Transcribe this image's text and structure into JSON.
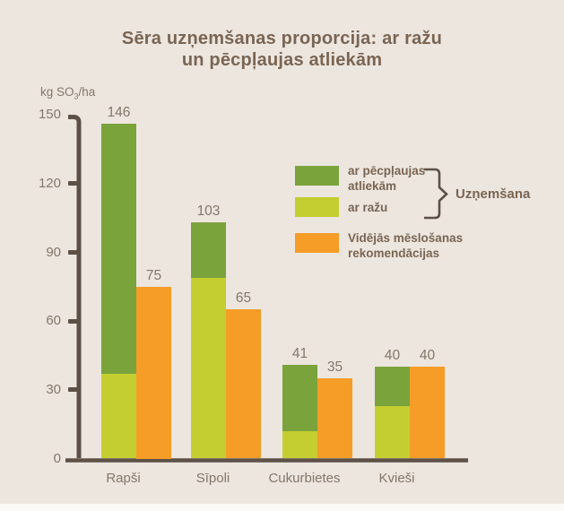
{
  "title": {
    "line1": "Sēra uzņemšanas proporcija: ar ražu",
    "line2": "un pēcpļaujas atliekām"
  },
  "unit_label": {
    "prefix": "kg SO",
    "subscript": "3",
    "suffix": "/ha"
  },
  "legend": {
    "items": [
      {
        "line1": "ar pēcpļaujas",
        "line2": "atliekām",
        "color": "#7aa33c"
      },
      {
        "line1": "ar ražu",
        "line2": "",
        "color": "#c5ce30"
      },
      {
        "line1": "Vidējās mēslošanas",
        "line2": "rekomendācijas",
        "color": "#f59d27"
      }
    ],
    "bracket_label": "Uzņemšana"
  },
  "colors": {
    "background": "#ece6df",
    "axis": "#5d5147",
    "dark_green": "#7aa33c",
    "light_green": "#c5ce30",
    "orange": "#f59d27",
    "title_text": "#7a6553",
    "label_text": "#84776a"
  },
  "chart_data": {
    "type": "bar",
    "title": "Sēra uzņemšanas proporcija: ar ražu un pēcpļaujas atliekām",
    "ylabel": "kg SO3/ha",
    "xlabel": "",
    "ylim": [
      0,
      150
    ],
    "yticks": [
      0,
      30,
      60,
      90,
      120,
      150
    ],
    "grid": false,
    "legend_position": "right",
    "categories": [
      "Rapši",
      "Sīpoli",
      "Cukurbietes",
      "Kvieši"
    ],
    "series": [
      {
        "name": "ar ražu",
        "role": "stack-bottom",
        "color": "#c5ce30",
        "values": [
          37,
          79,
          12,
          23
        ]
      },
      {
        "name": "ar pēcpļaujas atliekām",
        "role": "stack-top",
        "color": "#7aa33c",
        "values": [
          109,
          24,
          29,
          17
        ]
      },
      {
        "name": "Vidējās mēslošanas rekomendācijas",
        "role": "adjacent-bar",
        "color": "#f59d27",
        "values": [
          75,
          65,
          35,
          40
        ]
      }
    ],
    "stacked_totals": [
      146,
      103,
      41,
      40
    ],
    "bar_labels": {
      "stacked_total": [
        "146",
        "103",
        "41",
        "40"
      ],
      "recommendation": [
        "75",
        "65",
        "35",
        "40"
      ]
    }
  }
}
